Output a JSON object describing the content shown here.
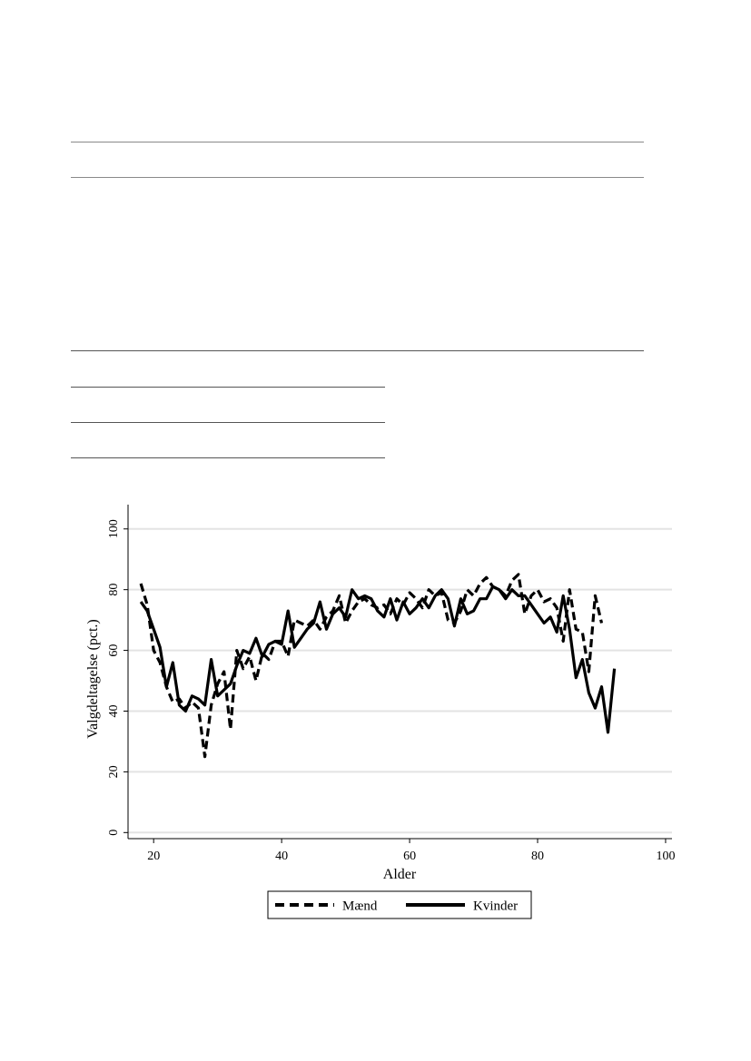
{
  "chart_data": {
    "type": "line",
    "xlabel": "Alder",
    "ylabel": "Valgdeltagelse (pct.)",
    "xlim": [
      16,
      101
    ],
    "ylim": [
      -2,
      108
    ],
    "xticks": [
      "20",
      "40",
      "60",
      "80",
      "100"
    ],
    "yticks": [
      "0",
      "20",
      "40",
      "60",
      "80",
      "100"
    ],
    "grid": true,
    "legend_position": "bottom",
    "series": [
      {
        "name": "Mænd",
        "style": "dashed",
        "x": [
          18,
          19,
          20,
          21,
          22,
          23,
          24,
          25,
          26,
          27,
          28,
          29,
          30,
          31,
          32,
          33,
          34,
          35,
          36,
          37,
          38,
          39,
          40,
          41,
          42,
          43,
          44,
          45,
          46,
          47,
          48,
          49,
          50,
          51,
          52,
          53,
          54,
          55,
          56,
          57,
          58,
          59,
          60,
          61,
          62,
          63,
          64,
          65,
          66,
          67,
          68,
          69,
          70,
          71,
          72,
          73,
          74,
          75,
          76,
          77,
          78,
          79,
          80,
          81,
          82,
          83,
          84,
          85,
          86,
          87,
          88,
          89,
          90
        ],
        "y": [
          82,
          75,
          60,
          56,
          48,
          43,
          44,
          41,
          43,
          41,
          25,
          42,
          49,
          53,
          34,
          60,
          54,
          58,
          50,
          59,
          57,
          63,
          63,
          58,
          70,
          69,
          68,
          70,
          67,
          71,
          73,
          78,
          69,
          73,
          76,
          77,
          75,
          74,
          75,
          72,
          77,
          75,
          79,
          77,
          74,
          80,
          78,
          79,
          70,
          69,
          73,
          80,
          78,
          82,
          84,
          81,
          80,
          78,
          83,
          85,
          72,
          78,
          80,
          76,
          77,
          74,
          63,
          80,
          67,
          66,
          53,
          78,
          69
        ]
      },
      {
        "name": "Kvinder",
        "style": "solid",
        "x": [
          18,
          19,
          20,
          21,
          22,
          23,
          24,
          25,
          26,
          27,
          28,
          29,
          30,
          31,
          32,
          33,
          34,
          35,
          36,
          37,
          38,
          39,
          40,
          41,
          42,
          43,
          44,
          45,
          46,
          47,
          48,
          49,
          50,
          51,
          52,
          53,
          54,
          55,
          56,
          57,
          58,
          59,
          60,
          61,
          62,
          63,
          64,
          65,
          66,
          67,
          68,
          69,
          70,
          71,
          72,
          73,
          74,
          75,
          76,
          77,
          78,
          79,
          80,
          81,
          82,
          83,
          84,
          85,
          86,
          87,
          88,
          89,
          90,
          91,
          92
        ],
        "y": [
          76,
          73,
          67,
          61,
          48,
          56,
          42,
          40,
          45,
          44,
          42,
          57,
          45,
          47,
          49,
          55,
          60,
          59,
          64,
          58,
          62,
          63,
          62,
          73,
          61,
          64,
          67,
          69,
          76,
          67,
          72,
          74,
          71,
          80,
          77,
          78,
          77,
          73,
          71,
          77,
          70,
          76,
          72,
          74,
          77,
          74,
          78,
          80,
          77,
          68,
          77,
          72,
          73,
          77,
          77,
          81,
          80,
          77,
          80,
          78,
          78,
          75,
          72,
          69,
          71,
          66,
          78,
          67,
          51,
          57,
          46,
          41,
          48,
          33,
          54
        ]
      }
    ]
  }
}
